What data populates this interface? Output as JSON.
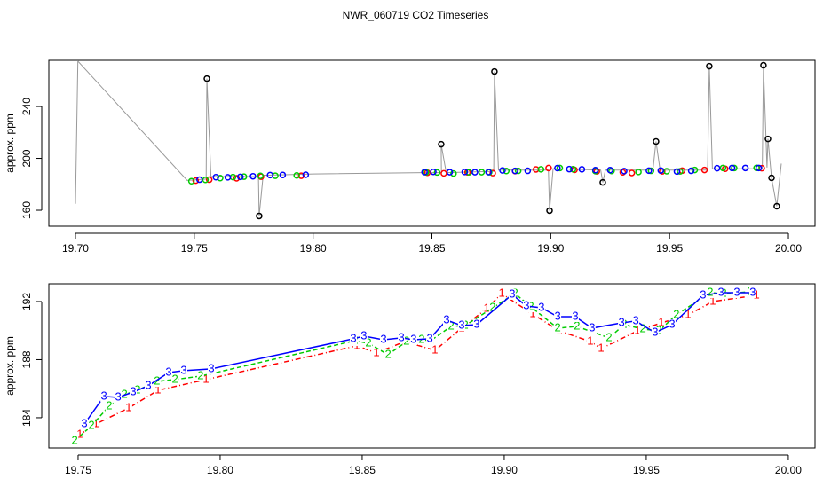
{
  "chart_data": [
    {
      "type": "scatter",
      "title": "NWR_060719  CO2 Timeseries",
      "y_label": "approx. ppm",
      "xlim": [
        19.6888,
        20.0112
      ],
      "ylim": [
        147.7,
        275.6
      ],
      "xticks": [
        {
          "value": 19.7,
          "label": "19.70"
        },
        19.75,
        {
          "value": 19.8,
          "label": "19.80"
        },
        19.85,
        {
          "value": 19.9,
          "label": "19.90"
        },
        19.95,
        {
          "value": 20.0,
          "label": "20.00"
        }
      ],
      "yticks": [
        160,
        200,
        240
      ],
      "series": [
        {
          "color": "#999999",
          "marker": "line",
          "x": [
            19.7,
            19.701,
            19.747,
            19.755,
            19.7553,
            19.757,
            19.777,
            19.7773,
            19.779,
            19.781,
            19.8,
            19.846,
            19.854,
            19.8539,
            19.856,
            19.876,
            19.8763,
            19.878,
            19.899,
            19.8995,
            19.901,
            19.921,
            19.9219,
            19.923,
            19.943,
            19.9443,
            19.946,
            19.966,
            19.9667,
            19.968,
            19.989,
            19.9895,
            19.991,
            19.9914,
            19.9929,
            19.9951,
            19.997
          ],
          "values": [
            165,
            275,
            183,
            184,
            261.5,
            186,
            186,
            155.6,
            187,
            187,
            188,
            189,
            189,
            210.9,
            189,
            190,
            267,
            191,
            191,
            159.7,
            192,
            191,
            181.5,
            191,
            191,
            213,
            191,
            191,
            271.1,
            192,
            192,
            271.8,
            193,
            215,
            185,
            163.1,
            196
          ]
        },
        {
          "color": "#ff0000",
          "marker": "circle",
          "x": [
            19.7506,
            19.7563,
            19.7678,
            19.7781,
            19.795,
            19.8481,
            19.855,
            19.865,
            19.8756,
            19.885,
            19.8938,
            19.8991,
            19.91,
            19.9194,
            19.9303,
            19.9341,
            19.9469,
            19.9553,
            19.9647,
            19.9734,
            19.9888
          ],
          "values": [
            182.84,
            183.57,
            184.67,
            185.89,
            186.63,
            188.95,
            188.46,
            189.25,
            188.64,
            190.17,
            191.51,
            192.55,
            191.14,
            189.98,
            189.25,
            188.76,
            189.98,
            190.53,
            191.08,
            192.0,
            192.43
          ]
        },
        {
          "color": "#00cc00",
          "marker": "circle",
          "x": [
            19.7488,
            19.7547,
            19.7609,
            19.7663,
            19.7709,
            19.7778,
            19.7841,
            19.7931,
            19.8475,
            19.8522,
            19.8591,
            19.8656,
            19.8709,
            19.8741,
            19.8813,
            19.8863,
            19.8959,
            19.9038,
            19.9094,
            19.9188,
            19.9256,
            19.9369,
            19.9422,
            19.9488,
            19.9544,
            19.9606,
            19.9725,
            19.9772,
            19.9866
          ],
          "values": [
            182.41,
            183.45,
            184.79,
            185.59,
            185.89,
            186.5,
            186.63,
            186.87,
            189.31,
            189.13,
            188.34,
            189.25,
            189.37,
            189.31,
            190.29,
            190.35,
            191.57,
            192.55,
            191.63,
            190.17,
            190.29,
            189.5,
            190.41,
            190.11,
            189.98,
            191.08,
            192.61,
            192.55,
            192.67
          ]
        },
        {
          "color": "#0000ff",
          "marker": "circle",
          "x": [
            19.7522,
            19.7591,
            19.7641,
            19.7694,
            19.7747,
            19.7819,
            19.7872,
            19.7969,
            19.8469,
            19.8506,
            19.8575,
            19.8638,
            19.8681,
            19.8738,
            19.8797,
            19.885,
            19.8903,
            19.9028,
            19.9078,
            19.9131,
            19.9188,
            19.925,
            19.9309,
            19.9413,
            19.9463,
            19.9531,
            19.9591,
            19.97,
            19.9763,
            19.9819,
            19.9875
          ],
          "values": [
            183.57,
            185.47,
            185.4,
            185.77,
            186.2,
            187.11,
            187.24,
            187.36,
            189.44,
            189.62,
            189.37,
            189.5,
            189.37,
            189.44,
            190.72,
            190.35,
            190.41,
            192.49,
            191.69,
            191.57,
            190.96,
            190.96,
            190.17,
            190.53,
            190.66,
            189.86,
            190.41,
            192.43,
            192.61,
            192.61,
            192.61
          ]
        },
        {
          "color": "#000000",
          "marker": "circle",
          "x": [
            19.7553,
            19.7773,
            19.8539,
            19.8763,
            19.8995,
            19.9219,
            19.9443,
            19.9667,
            19.9895,
            19.9914,
            19.9929,
            19.9951
          ],
          "values": [
            261.5,
            155.6,
            210.9,
            267.0,
            159.7,
            181.5,
            213.0,
            271.1,
            271.8,
            215.0,
            185.0,
            163.1
          ]
        }
      ]
    },
    {
      "type": "line",
      "y_label": "approx. ppm",
      "xlim": [
        19.7397,
        20.0094
      ],
      "ylim": [
        181.92,
        193.22
      ],
      "xticks": [
        19.75,
        {
          "value": 19.8,
          "label": "19.80"
        },
        19.85,
        {
          "value": 19.9,
          "label": "19.90"
        },
        19.95,
        {
          "value": 20.0,
          "label": "20.00"
        }
      ],
      "yticks": [
        184,
        188,
        192
      ],
      "series": [
        {
          "name": "1",
          "color": "#ff0000",
          "dash": "6 3 1 3",
          "x": [
            19.7506,
            19.7563,
            19.7678,
            19.7781,
            19.795,
            19.8481,
            19.855,
            19.865,
            19.8756,
            19.885,
            19.8938,
            19.8991,
            19.91,
            19.9194,
            19.9303,
            19.9341,
            19.9469,
            19.9553,
            19.9647,
            19.9734,
            19.9888
          ],
          "values": [
            182.84,
            183.57,
            184.67,
            185.89,
            186.63,
            188.95,
            188.46,
            189.25,
            188.64,
            190.17,
            191.51,
            192.55,
            191.14,
            189.98,
            189.25,
            188.76,
            189.98,
            190.53,
            191.08,
            192.0,
            192.43
          ]
        },
        {
          "name": "2",
          "color": "#00cc00",
          "dash": "5 3",
          "x": [
            19.7488,
            19.7547,
            19.7609,
            19.7663,
            19.7709,
            19.7778,
            19.7841,
            19.7931,
            19.8475,
            19.8522,
            19.8591,
            19.8656,
            19.8709,
            19.8741,
            19.8813,
            19.8863,
            19.8959,
            19.9038,
            19.9094,
            19.9188,
            19.9256,
            19.9369,
            19.9422,
            19.9488,
            19.9544,
            19.9606,
            19.9725,
            19.9772,
            19.9866
          ],
          "values": [
            182.41,
            183.45,
            184.79,
            185.59,
            185.89,
            186.5,
            186.63,
            186.87,
            189.31,
            189.13,
            188.34,
            189.25,
            189.37,
            189.31,
            190.29,
            190.35,
            191.57,
            192.55,
            191.63,
            190.17,
            190.29,
            189.5,
            190.41,
            190.11,
            189.98,
            191.08,
            192.61,
            192.55,
            192.67
          ]
        },
        {
          "name": "3",
          "color": "#0000ff",
          "dash": "none",
          "x": [
            19.7522,
            19.7591,
            19.7641,
            19.7694,
            19.7747,
            19.7819,
            19.7872,
            19.7969,
            19.8469,
            19.8506,
            19.8575,
            19.8638,
            19.8681,
            19.8738,
            19.8797,
            19.885,
            19.8903,
            19.9028,
            19.9078,
            19.9131,
            19.9188,
            19.925,
            19.9309,
            19.9413,
            19.9463,
            19.9531,
            19.9591,
            19.97,
            19.9763,
            19.9819,
            19.9875
          ],
          "values": [
            183.57,
            185.47,
            185.4,
            185.77,
            186.2,
            187.11,
            187.24,
            187.36,
            189.44,
            189.62,
            189.37,
            189.5,
            189.37,
            189.44,
            190.72,
            190.35,
            190.41,
            192.49,
            191.69,
            191.57,
            190.96,
            190.96,
            190.17,
            190.53,
            190.66,
            189.86,
            190.41,
            192.43,
            192.61,
            192.61,
            192.61
          ]
        }
      ]
    }
  ]
}
